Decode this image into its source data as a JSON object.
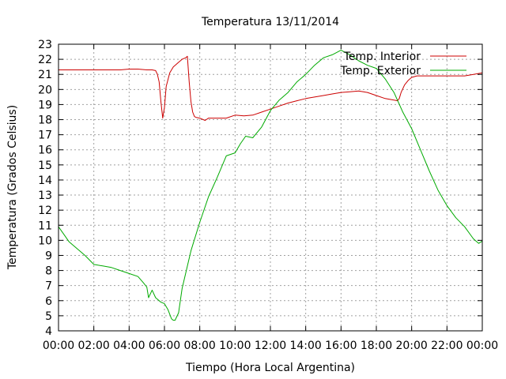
{
  "chart_data": {
    "type": "line",
    "title": "Temperatura 13/11/2014",
    "xlabel": "Tiempo (Hora Local Argentina)",
    "ylabel": "Temperatura (Grados Celsius)",
    "xlim": [
      0,
      24
    ],
    "ylim": [
      4,
      23
    ],
    "x_ticks": [
      0,
      2,
      4,
      6,
      8,
      10,
      12,
      14,
      16,
      18,
      20,
      22,
      24
    ],
    "x_tick_labels": [
      "00:00",
      "02:00",
      "04:00",
      "06:00",
      "08:00",
      "10:00",
      "12:00",
      "14:00",
      "16:00",
      "18:00",
      "20:00",
      "22:00",
      "00:00"
    ],
    "y_ticks": [
      4,
      5,
      6,
      7,
      8,
      9,
      10,
      11,
      12,
      13,
      14,
      15,
      16,
      17,
      18,
      19,
      20,
      21,
      22,
      23
    ],
    "y_tick_labels": [
      "4",
      "5",
      "6",
      "7",
      "8",
      "9",
      "10",
      "11",
      "12",
      "13",
      "14",
      "15",
      "16",
      "17",
      "18",
      "19",
      "20",
      "21",
      "22",
      "23"
    ],
    "grid": true,
    "legend_position": "top-right",
    "series": [
      {
        "name": "Temp. Interior",
        "color": "#cc0000",
        "x": [
          0,
          0.5,
          1,
          1.5,
          2,
          2.5,
          3,
          3.5,
          4,
          4.5,
          5,
          5.3,
          5.5,
          5.6,
          5.7,
          5.8,
          5.9,
          6.0,
          6.1,
          6.3,
          6.5,
          6.8,
          7.0,
          7.2,
          7.3,
          7.4,
          7.5,
          7.6,
          7.7,
          7.8,
          8.0,
          8.3,
          8.5,
          9.0,
          9.5,
          10.0,
          10.5,
          11.0,
          11.5,
          12.0,
          12.5,
          13.0,
          13.5,
          14.0,
          14.5,
          15.0,
          15.5,
          16.0,
          16.5,
          17.0,
          17.5,
          18.0,
          18.5,
          19.0,
          19.2,
          19.3,
          19.4,
          19.6,
          19.8,
          20.0,
          20.3,
          20.6,
          21.0,
          21.5,
          22.0,
          22.5,
          23.0,
          23.5,
          24.0
        ],
        "values": [
          21.3,
          21.3,
          21.3,
          21.3,
          21.3,
          21.3,
          21.3,
          21.3,
          21.35,
          21.35,
          21.3,
          21.3,
          21.25,
          21.0,
          20.5,
          19.2,
          18.1,
          18.8,
          20.2,
          21.1,
          21.5,
          21.8,
          22.0,
          22.1,
          22.2,
          20.5,
          19.2,
          18.5,
          18.2,
          18.15,
          18.1,
          17.95,
          18.1,
          18.1,
          18.1,
          18.3,
          18.25,
          18.3,
          18.5,
          18.7,
          18.9,
          19.1,
          19.25,
          19.4,
          19.5,
          19.6,
          19.7,
          19.8,
          19.85,
          19.9,
          19.8,
          19.6,
          19.4,
          19.3,
          19.25,
          19.4,
          19.8,
          20.3,
          20.6,
          20.8,
          20.9,
          20.9,
          20.9,
          20.9,
          20.9,
          20.9,
          20.9,
          21.0,
          21.1
        ]
      },
      {
        "name": "Temp. Exterior",
        "color": "#00aa00",
        "x": [
          0,
          0.3,
          0.6,
          1.0,
          1.5,
          2.0,
          2.5,
          3.0,
          3.5,
          4.0,
          4.5,
          4.8,
          5.0,
          5.1,
          5.3,
          5.5,
          5.8,
          6.0,
          6.2,
          6.4,
          6.5,
          6.6,
          6.8,
          7.0,
          7.5,
          8.0,
          8.5,
          9.0,
          9.5,
          10.0,
          10.3,
          10.6,
          11.0,
          11.5,
          12.0,
          12.5,
          13.0,
          13.5,
          14.0,
          14.5,
          15.0,
          15.5,
          16.0,
          16.5,
          17.0,
          17.5,
          18.0,
          18.5,
          19.0,
          19.5,
          20.0,
          20.5,
          21.0,
          21.5,
          22.0,
          22.5,
          23.0,
          23.5,
          23.8,
          24.0
        ],
        "values": [
          10.9,
          10.4,
          9.9,
          9.5,
          9.0,
          8.4,
          8.3,
          8.2,
          8.0,
          7.8,
          7.6,
          7.2,
          6.9,
          6.2,
          6.7,
          6.2,
          5.9,
          5.8,
          5.4,
          4.8,
          4.7,
          4.7,
          5.2,
          6.8,
          9.3,
          11.2,
          12.9,
          14.2,
          15.6,
          15.8,
          16.4,
          16.9,
          16.8,
          17.5,
          18.6,
          19.3,
          19.8,
          20.5,
          21.0,
          21.6,
          22.1,
          22.3,
          22.6,
          22.3,
          21.9,
          21.6,
          21.4,
          20.7,
          19.8,
          18.5,
          17.4,
          16.0,
          14.6,
          13.3,
          12.3,
          11.5,
          10.9,
          10.1,
          9.8,
          9.95
        ]
      }
    ]
  }
}
